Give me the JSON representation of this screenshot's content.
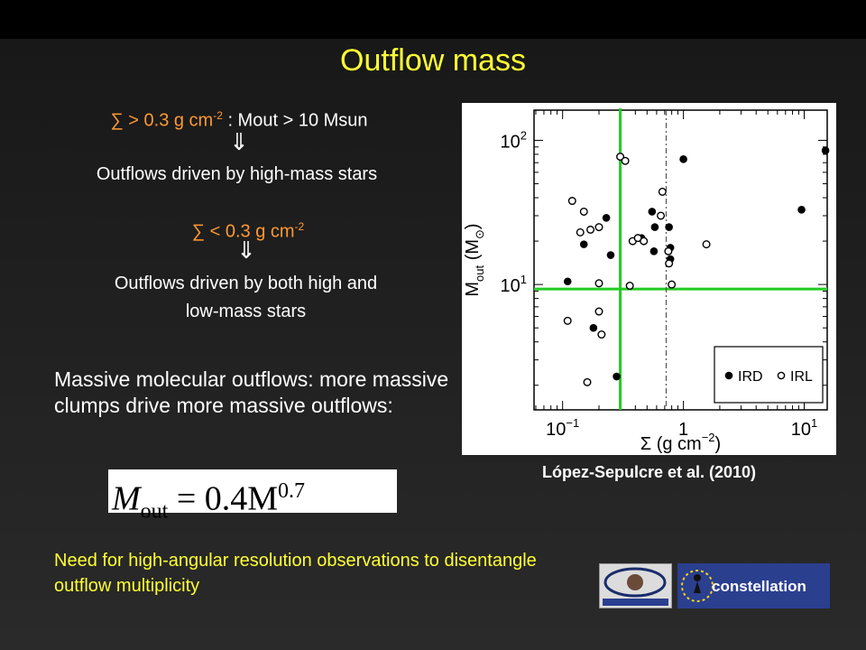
{
  "slide": {
    "title": "Outflow mass",
    "high_sigma": {
      "prefix": "∑ > 0.3 g cm",
      "exp": "-2",
      "suffix": " : Mout > 10 Msun"
    },
    "arrow": "⇓",
    "high_result": "Outflows driven by high-mass stars",
    "low_sigma": {
      "prefix": "∑ < 0.3 g cm",
      "exp": "-2"
    },
    "low_result_line1": "Outflows driven by both high and",
    "low_result_line2": "low-mass stars",
    "statement": "Massive molecular outflows: more massive clumps drive more massive outflows:",
    "formula": {
      "lhs": "M",
      "lhs_sub": "out",
      "rhs": "= 0.4M",
      "rhs_exp": "0.7"
    },
    "need": "Need for high-angular resolution observations to disentangle outflow multiplicity",
    "citation": "López-Sepulcre et al. (2010)",
    "logo1_text": "MARIE CURIE ACTIONS",
    "logo2_text": "constellation"
  },
  "chart_data": {
    "type": "scatter",
    "xlabel": "Σ (g cm",
    "xlabel_exp": "−2",
    "xlabel_close": ")",
    "ylabel": "M",
    "ylabel_sub": "out",
    "ylabel_unit": "(M",
    "ylabel_unit_close": ")",
    "x_scale": "log",
    "y_scale": "log",
    "xlim": [
      0.058,
      15.5
    ],
    "ylim": [
      1.35,
      162
    ],
    "x_ticks": [
      {
        "value": 0.1,
        "base": "10",
        "exp": "−1"
      },
      {
        "value": 1,
        "base": "1",
        "exp": ""
      },
      {
        "value": 10,
        "base": "10",
        "exp": "1"
      }
    ],
    "y_ticks": [
      {
        "value": 10,
        "base": "10",
        "exp": "1"
      },
      {
        "value": 100,
        "base": "10",
        "exp": "2"
      }
    ],
    "reference_lines": [
      {
        "orientation": "vertical",
        "value": 0.3,
        "color": "#22cc22"
      },
      {
        "orientation": "horizontal",
        "value": 9.3,
        "color": "#22cc22"
      },
      {
        "orientation": "vertical",
        "value": 0.72,
        "color": "#555555",
        "style": "dashdot"
      }
    ],
    "legend": {
      "placement": "bottom-right"
    },
    "series": [
      {
        "name": "IRD",
        "marker": "filled",
        "x": [
          1.0,
          0.55,
          0.58,
          0.23,
          0.45,
          0.76,
          0.78,
          0.78,
          0.57,
          0.25,
          0.15,
          0.11,
          0.18,
          0.28,
          15.0,
          9.5
        ],
        "y": [
          74,
          32,
          25,
          29,
          21,
          25,
          18,
          15,
          17,
          16,
          19,
          10.5,
          5.0,
          2.3,
          85,
          33
        ]
      },
      {
        "name": "IRL",
        "marker": "open",
        "x": [
          0.3,
          0.33,
          0.12,
          0.15,
          0.17,
          0.2,
          0.14,
          0.38,
          0.42,
          0.47,
          0.67,
          0.65,
          0.75,
          0.76,
          1.55,
          0.2,
          0.2,
          0.36,
          0.8,
          0.11,
          0.21,
          0.16
        ],
        "y": [
          77,
          72,
          38,
          32,
          24,
          25,
          23,
          20,
          21,
          20,
          44,
          30,
          17,
          14,
          19,
          10.2,
          6.5,
          9.8,
          10.0,
          5.6,
          4.5,
          2.1
        ]
      }
    ]
  }
}
